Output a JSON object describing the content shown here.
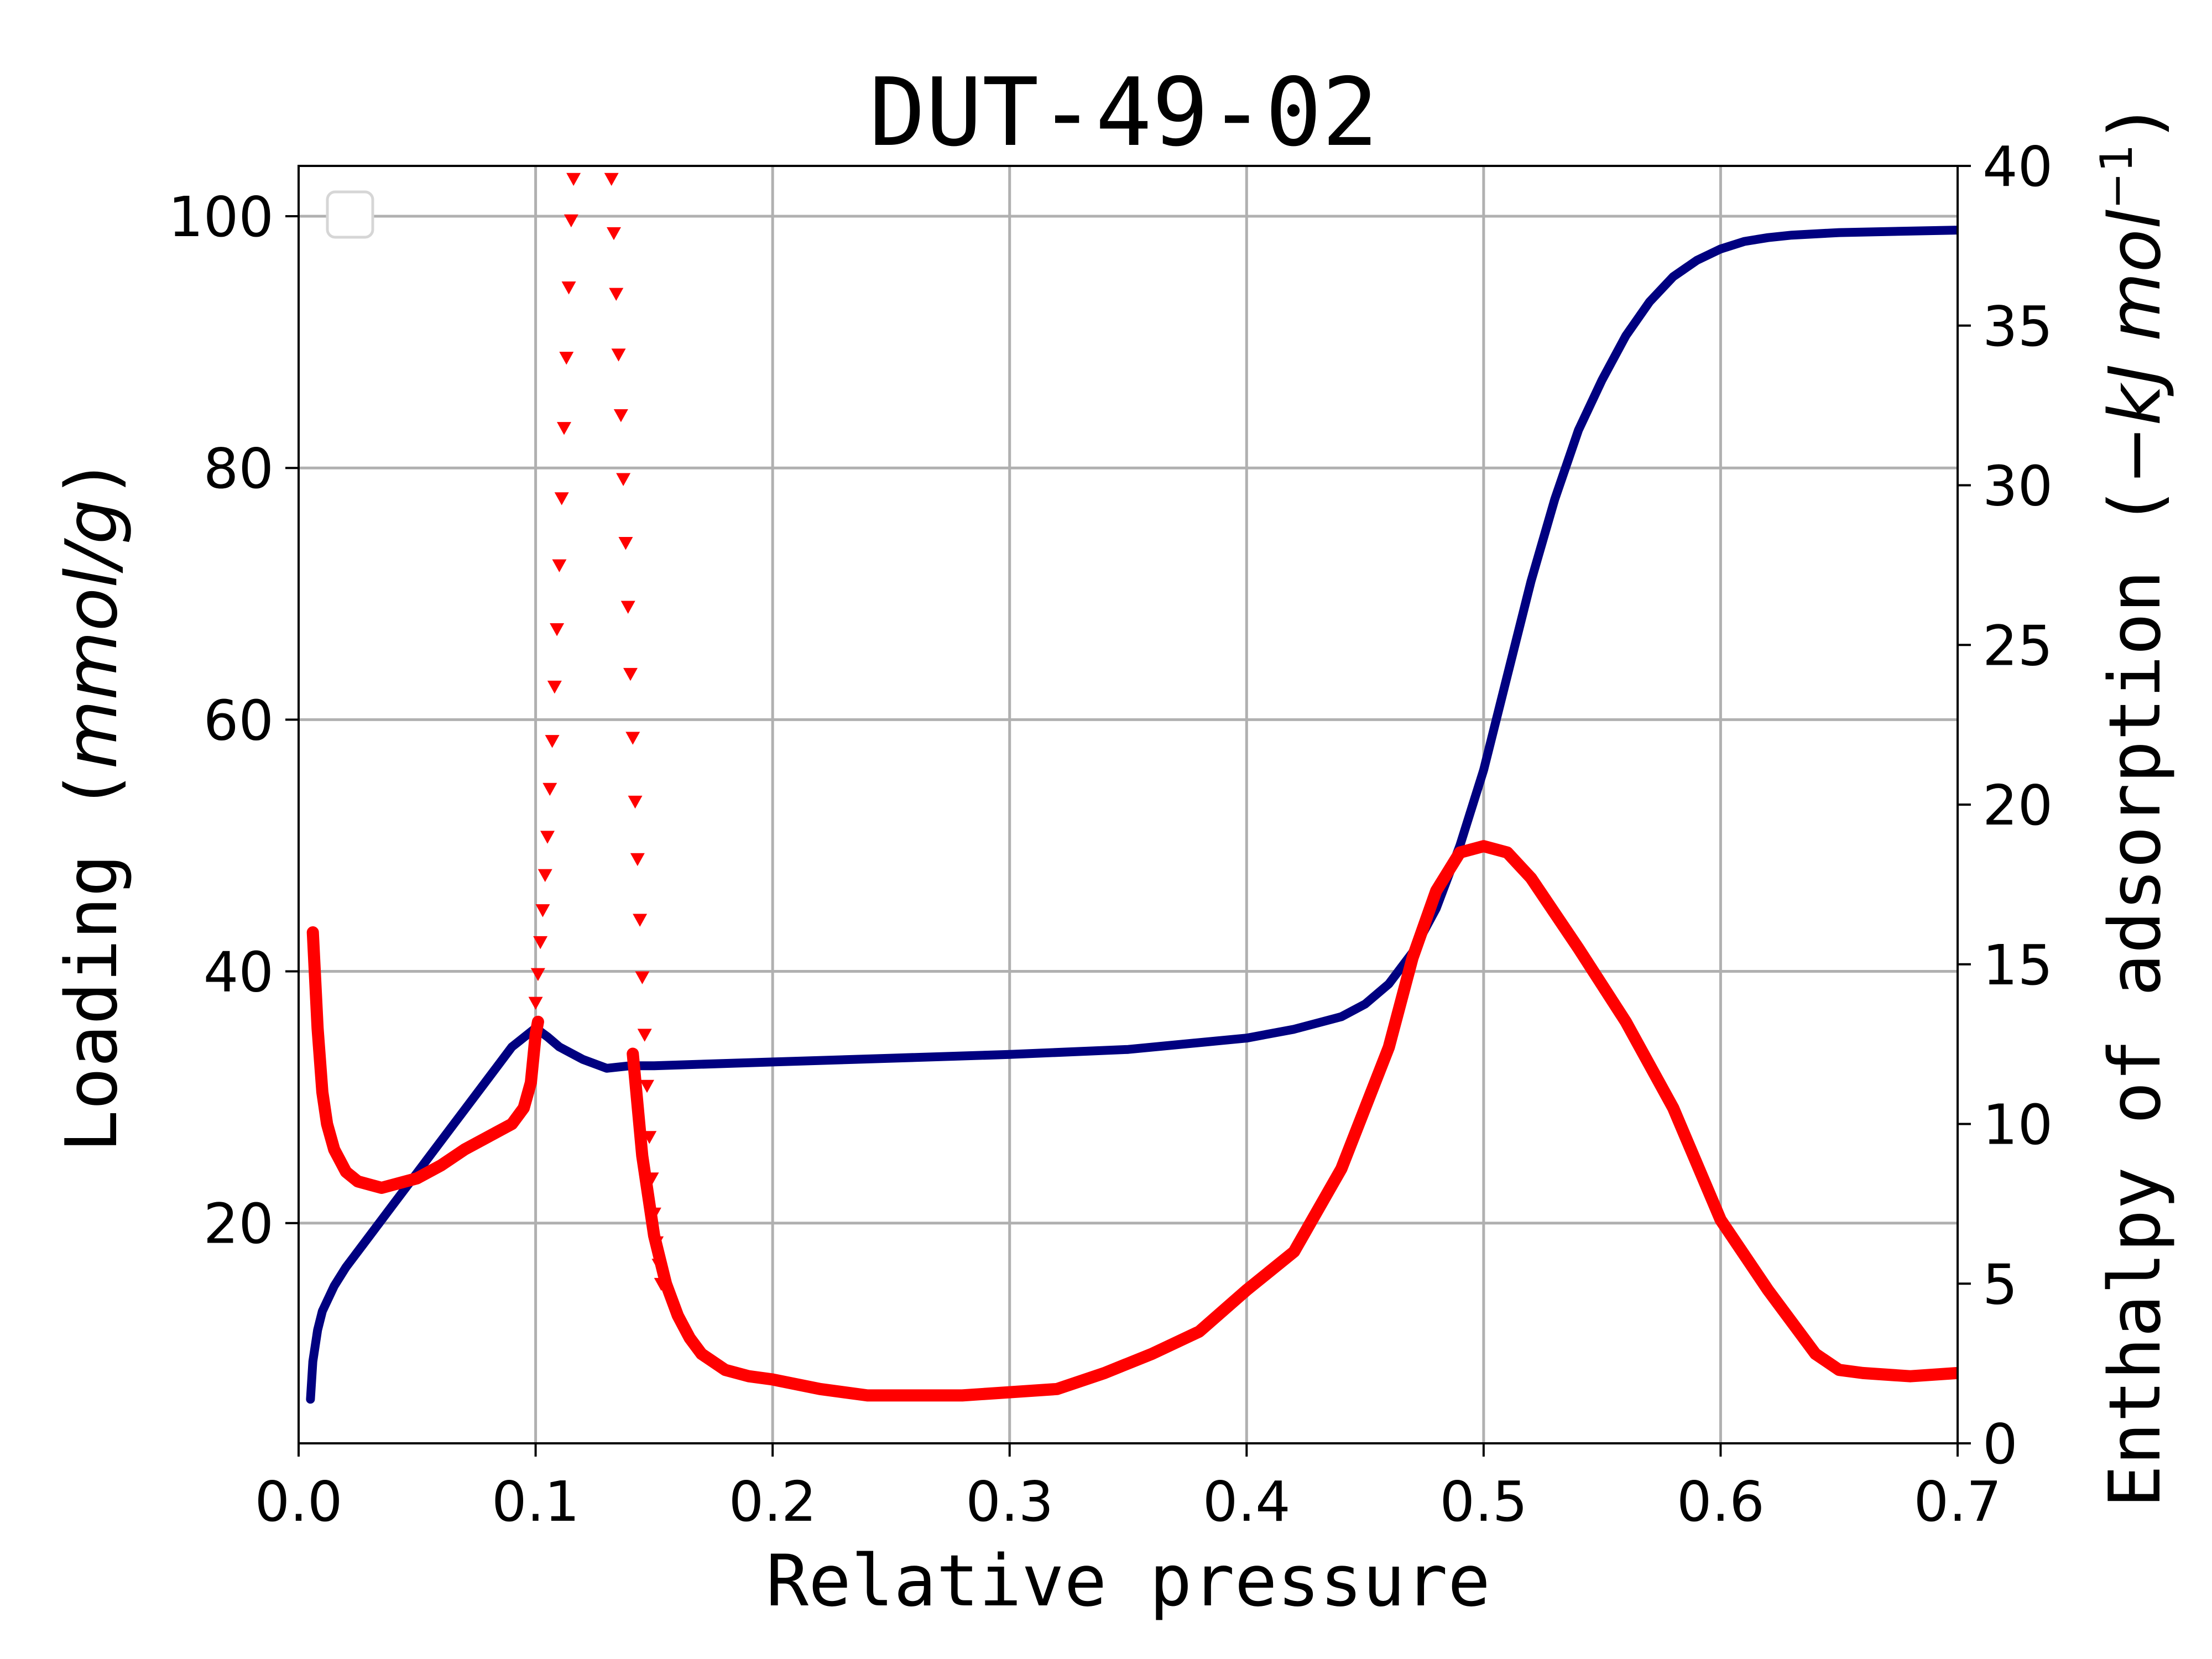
{
  "chart_data": {
    "type": "line",
    "title": "DUT-49-02",
    "xlabel": "Relative pressure",
    "ylabel_left": "Loading (mmol/g)",
    "ylabel_left_parts": {
      "main": "Loading (",
      "unit": "mmol/g",
      "close": ")"
    },
    "ylabel_right": "Enthalpy of adsorption (−kJ mol⁻¹)",
    "ylabel_right_parts": {
      "main": "Enthalpy of adsorption (",
      "unit": "−kJ mol",
      "sup": "−1",
      "close": ")"
    },
    "xlim": [
      0.0,
      0.7
    ],
    "ylim_left": [
      2.5,
      104
    ],
    "ylim_right": [
      0,
      40
    ],
    "x_ticks": [
      "0.0",
      "0.1",
      "0.2",
      "0.3",
      "0.4",
      "0.5",
      "0.6",
      "0.7"
    ],
    "y_left_ticks": [
      "20",
      "40",
      "60",
      "80",
      "100"
    ],
    "y_right_ticks": [
      "0",
      "5",
      "10",
      "15",
      "20",
      "25",
      "30",
      "35",
      "40"
    ],
    "grid": true,
    "legend": {
      "placement": "top-left",
      "entries": []
    },
    "colors": {
      "loading": "#000080",
      "enthalpy": "#ff0000"
    },
    "series": [
      {
        "axis": "left",
        "style": "line",
        "x": [
          0.005,
          0.006,
          0.008,
          0.01,
          0.015,
          0.02,
          0.03,
          0.04,
          0.05,
          0.06,
          0.07,
          0.08,
          0.09,
          0.1,
          0.105,
          0.11,
          0.12,
          0.13,
          0.14,
          0.15,
          0.2,
          0.25,
          0.3,
          0.35,
          0.4,
          0.42,
          0.44,
          0.45,
          0.46,
          0.47,
          0.48,
          0.49,
          0.5,
          0.51,
          0.52,
          0.53,
          0.54,
          0.55,
          0.56,
          0.57,
          0.58,
          0.59,
          0.6,
          0.61,
          0.62,
          0.63,
          0.65,
          0.7
        ],
        "values": [
          6,
          9,
          11.5,
          13,
          15,
          16.5,
          19,
          21.5,
          24,
          26.5,
          29,
          31.5,
          34,
          35.5,
          34.8,
          34,
          33,
          32.3,
          32.5,
          32.5,
          32.8,
          33.1,
          33.4,
          33.8,
          34.7,
          35.4,
          36.4,
          37.4,
          39,
          41.5,
          45,
          50,
          56,
          63.5,
          71,
          77.5,
          83,
          87,
          90.5,
          93.2,
          95.2,
          96.5,
          97.4,
          98,
          98.3,
          98.5,
          98.7,
          98.9
        ]
      },
      {
        "axis": "right",
        "style": "line",
        "x": [
          0.006,
          0.008,
          0.01,
          0.012,
          0.015,
          0.02,
          0.025,
          0.03,
          0.035,
          0.04,
          0.05,
          0.06,
          0.07,
          0.08,
          0.09,
          0.095,
          0.098,
          0.1,
          0.101
        ],
        "values": [
          16,
          13,
          11,
          10,
          9.2,
          8.5,
          8.2,
          8.1,
          8.0,
          8.1,
          8.3,
          8.7,
          9.2,
          9.6,
          10.0,
          10.5,
          11.3,
          12.8,
          13.2
        ]
      },
      {
        "axis": "right",
        "style": "triangles",
        "x": [
          0.1,
          0.101,
          0.102,
          0.103,
          0.104,
          0.105,
          0.106,
          0.107,
          0.108,
          0.109,
          0.11,
          0.111,
          0.112,
          0.113,
          0.114,
          0.115,
          0.116
        ],
        "values": [
          13.8,
          14.7,
          15.7,
          16.7,
          17.8,
          19,
          20.5,
          22,
          23.7,
          25.5,
          27.5,
          29.6,
          31.8,
          34,
          36.2,
          38.3,
          39.6
        ]
      },
      {
        "axis": "right",
        "style": "triangles",
        "x": [
          0.132,
          0.133,
          0.134,
          0.135,
          0.136,
          0.137,
          0.138,
          0.139,
          0.14,
          0.141,
          0.142,
          0.143,
          0.144,
          0.145,
          0.146,
          0.147,
          0.148,
          0.149,
          0.15,
          0.151,
          0.152,
          0.153
        ],
        "values": [
          39.6,
          37.9,
          36,
          34.1,
          32.2,
          30.2,
          28.2,
          26.2,
          24.1,
          22.1,
          20.1,
          18.3,
          16.4,
          14.6,
          12.8,
          11.2,
          9.6,
          8.3,
          7.2,
          6.3,
          5.6,
          5.0
        ]
      },
      {
        "axis": "right",
        "style": "line",
        "x": [
          0.141,
          0.145,
          0.15,
          0.155,
          0.16,
          0.165,
          0.17,
          0.18,
          0.19,
          0.2,
          0.22,
          0.24,
          0.26,
          0.28,
          0.3,
          0.32,
          0.34,
          0.36,
          0.38,
          0.4,
          0.42,
          0.44,
          0.46,
          0.47,
          0.48,
          0.49,
          0.5,
          0.51,
          0.52,
          0.54,
          0.56,
          0.58,
          0.6,
          0.62,
          0.64,
          0.65,
          0.66,
          0.68,
          0.7
        ],
        "values": [
          12.2,
          9.0,
          6.5,
          5.0,
          4.0,
          3.3,
          2.8,
          2.3,
          2.1,
          2.0,
          1.7,
          1.5,
          1.5,
          1.5,
          1.6,
          1.7,
          2.2,
          2.8,
          3.5,
          4.8,
          6.0,
          8.6,
          12.4,
          15.2,
          17.3,
          18.5,
          18.7,
          18.5,
          17.7,
          15.5,
          13.2,
          10.5,
          7.0,
          4.8,
          2.8,
          2.3,
          2.2,
          2.1,
          2.2
        ]
      }
    ]
  }
}
